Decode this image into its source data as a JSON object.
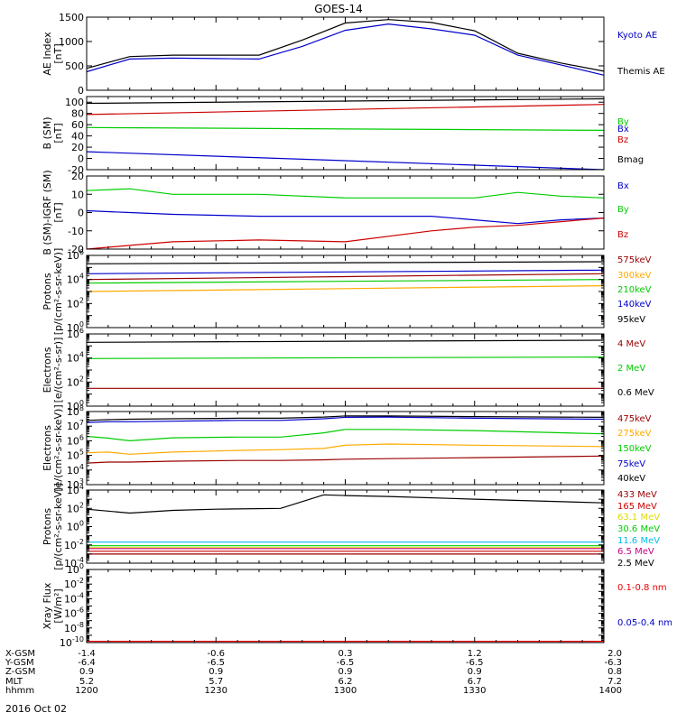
{
  "title": "GOES-14",
  "date_label": "2016 Oct 02",
  "orbit_table": {
    "rows": [
      {
        "label": "X-GSM",
        "values": [
          "-1.4",
          "-0.6",
          "0.3",
          "1.2",
          "2.0"
        ]
      },
      {
        "label": "Y-GSM",
        "values": [
          "-6.4",
          "-6.5",
          "-6.5",
          "-6.5",
          "-6.3"
        ]
      },
      {
        "label": "Z-GSM",
        "values": [
          "0.9",
          "0.9",
          "0.9",
          "0.9",
          "0.8"
        ]
      },
      {
        "label": "MLT",
        "values": [
          "5.2",
          "5.7",
          "6.2",
          "6.7",
          "7.2"
        ]
      },
      {
        "label": "hhmm",
        "values": [
          "1200",
          "1230",
          "1300",
          "1330",
          "1400"
        ]
      }
    ]
  },
  "colors": {
    "black": "#000000",
    "blue": "#0000cc",
    "red": "#cc0000",
    "green": "#00cc00",
    "orange": "#ffaa00",
    "darkred": "#990000",
    "cyan": "#00bbee",
    "yellow": "#dddd00",
    "purple": "#cc0088",
    "xred": "#ee0000"
  },
  "chart_data": [
    {
      "type": "line",
      "ylabel": [
        "AE Index",
        "[nT]"
      ],
      "ylim": [
        0,
        1500
      ],
      "log": false,
      "yticks": [
        0,
        500,
        1000,
        1500
      ],
      "x": [
        0,
        10,
        20,
        30,
        40,
        50,
        60,
        70,
        80,
        90,
        100,
        110,
        120
      ],
      "series": [
        {
          "name": "Kyoto AE",
          "color": "blue",
          "values": [
            380,
            640,
            660,
            650,
            640,
            900,
            1230,
            1360,
            1260,
            1130,
            720,
            520,
            310
          ]
        },
        {
          "name": "Themis AE",
          "color": "black",
          "values": [
            450,
            690,
            720,
            720,
            720,
            1030,
            1380,
            1450,
            1390,
            1220,
            760,
            560,
            390
          ]
        }
      ]
    },
    {
      "type": "line",
      "ylabel": [
        "B (SM)",
        "[nT]"
      ],
      "ylim": [
        -20,
        110
      ],
      "log": false,
      "yticks": [
        -20,
        0,
        20,
        40,
        60,
        80,
        100
      ],
      "x": [
        0,
        120
      ],
      "series": [
        {
          "name": "Bx",
          "color": "blue",
          "values": [
            12,
            -20
          ]
        },
        {
          "name": "By",
          "color": "green",
          "values": [
            55,
            50
          ]
        },
        {
          "name": "Bz",
          "color": "red",
          "values": [
            78,
            96
          ]
        },
        {
          "name": "Bmag",
          "color": "black",
          "values": [
            98,
            106
          ]
        }
      ]
    },
    {
      "type": "line",
      "ylabel": [
        "B (SM)-IGRF (SM)",
        "[nT]"
      ],
      "ylim": [
        -20,
        20
      ],
      "log": false,
      "yticks": [
        -20,
        -10,
        0,
        10,
        20
      ],
      "x": [
        0,
        10,
        20,
        40,
        60,
        80,
        90,
        100,
        110,
        120
      ],
      "series": [
        {
          "name": "Bx",
          "color": "blue",
          "values": [
            1,
            0,
            -1,
            -2,
            -2,
            -2,
            -4,
            -6,
            -4,
            -3
          ]
        },
        {
          "name": "By",
          "color": "green",
          "values": [
            12,
            13,
            10,
            10,
            8,
            8,
            8,
            11,
            9,
            8
          ]
        },
        {
          "name": "Bz",
          "color": "red",
          "values": [
            -20,
            -18,
            -16,
            -15,
            -16,
            -10,
            -8,
            -7,
            -5,
            -3
          ]
        }
      ]
    },
    {
      "type": "line",
      "ylabel": [
        "Protons",
        "[p/(cm²-s-sr-keV)]"
      ],
      "ylim": [
        1,
        1000000
      ],
      "log": true,
      "ytickexp": [
        0,
        2,
        4,
        6
      ],
      "x": [
        0,
        120
      ],
      "series": [
        {
          "name": "575keV",
          "color": "darkred",
          "values": [
            10000,
            30000
          ]
        },
        {
          "name": "300keV",
          "color": "orange",
          "values": [
            1000,
            3000
          ]
        },
        {
          "name": "210keV",
          "color": "green",
          "values": [
            5000,
            10000
          ]
        },
        {
          "name": "140keV",
          "color": "blue",
          "values": [
            30000,
            60000
          ]
        },
        {
          "name": "95keV",
          "color": "black",
          "values": [
            200000,
            300000
          ]
        }
      ]
    },
    {
      "type": "line",
      "ylabel": [
        "Electrons",
        "[e/(cm²-s-sr)]"
      ],
      "ylim": [
        1,
        1000000
      ],
      "log": true,
      "ytickexp": [
        0,
        2,
        4,
        6
      ],
      "x": [
        0,
        120
      ],
      "series": [
        {
          "name": "4 MeV",
          "color": "darkred",
          "values": [
            30,
            30
          ]
        },
        {
          "name": "2 MeV",
          "color": "green",
          "values": [
            9000,
            12000
          ]
        },
        {
          "name": "0.6 MeV",
          "color": "black",
          "values": [
            200000,
            300000
          ]
        }
      ]
    },
    {
      "type": "line",
      "ylabel": [
        "Electrons",
        "[e/(cm²-s-sr-keV)]"
      ],
      "ylim": [
        1000,
        100000000
      ],
      "log": true,
      "ytickexp": [
        3,
        4,
        5,
        6,
        7,
        8
      ],
      "x": [
        0,
        5,
        10,
        20,
        35,
        45,
        55,
        60,
        70,
        90,
        120
      ],
      "series": [
        {
          "name": "475keV",
          "color": "darkred",
          "values": [
            30000,
            35000,
            35000,
            40000,
            45000,
            45000,
            50000,
            55000,
            60000,
            70000,
            90000
          ]
        },
        {
          "name": "275keV",
          "color": "orange",
          "values": [
            150000,
            170000,
            120000,
            170000,
            220000,
            250000,
            300000,
            500000,
            600000,
            500000,
            400000
          ]
        },
        {
          "name": "150keV",
          "color": "green",
          "values": [
            2000000,
            1500000,
            1000000,
            1600000,
            1800000,
            1800000,
            3500000,
            6000000,
            6000000,
            5000000,
            3000000
          ]
        },
        {
          "name": "75keV",
          "color": "blue",
          "values": [
            18000000,
            20000000,
            20000000,
            22000000,
            25000000,
            25000000,
            32000000,
            40000000,
            42000000,
            35000000,
            30000000
          ]
        },
        {
          "name": "40keV",
          "color": "black",
          "values": [
            25000000,
            28000000,
            30000000,
            32000000,
            35000000,
            35000000,
            42000000,
            50000000,
            50000000,
            45000000,
            40000000
          ]
        }
      ]
    },
    {
      "type": "line",
      "ylabel": [
        "Protons",
        "[p/(cm²-s-sr-keV)]"
      ],
      "ylim": [
        0.0001,
        10000
      ],
      "log": true,
      "ytickexp": [
        -4,
        -2,
        0,
        2,
        4
      ],
      "x": [
        0,
        10,
        20,
        30,
        45,
        55,
        60,
        70,
        90,
        120
      ],
      "series": [
        {
          "name": "433 MeV",
          "color": "darkred",
          "values": [
            0.001,
            0.001,
            0.001,
            0.001,
            0.001,
            0.001,
            0.001,
            0.001,
            0.001,
            0.001
          ]
        },
        {
          "name": "165 MeV",
          "color": "red",
          "values": [
            0.002,
            0.002,
            0.002,
            0.002,
            0.002,
            0.002,
            0.002,
            0.002,
            0.002,
            0.002
          ]
        },
        {
          "name": "63.1 MeV",
          "color": "yellow",
          "values": [
            0.005,
            0.005,
            0.005,
            0.005,
            0.005,
            0.005,
            0.005,
            0.005,
            0.005,
            0.005
          ]
        },
        {
          "name": "30.6 MeV",
          "color": "green",
          "values": [
            0.008,
            0.008,
            0.008,
            0.008,
            0.008,
            0.008,
            0.008,
            0.008,
            0.008,
            0.008
          ]
        },
        {
          "name": "11.6 MeV",
          "color": "cyan",
          "values": [
            0.02,
            0.02,
            0.02,
            0.02,
            0.02,
            0.02,
            0.02,
            0.02,
            0.02,
            0.02
          ]
        },
        {
          "name": "6.5 MeV",
          "color": "purple",
          "values": [
            0.004,
            0.004,
            0.004,
            0.004,
            0.004,
            0.004,
            0.004,
            0.004,
            0.004,
            0.004
          ]
        },
        {
          "name": "2.5 MeV",
          "color": "black",
          "values": [
            80,
            30,
            60,
            80,
            100,
            3000,
            2500,
            2000,
            1000,
            400
          ]
        }
      ]
    },
    {
      "type": "line",
      "ylabel": [
        "Xray Flux",
        "[W/m²]"
      ],
      "ylim": [
        1e-10,
        1
      ],
      "log": true,
      "ytickexp": [
        -10,
        -8,
        -6,
        -4,
        -2,
        0
      ],
      "x": [
        0,
        120
      ],
      "series": [
        {
          "name": "0.1-0.8 nm",
          "color": "xred",
          "values": [
            1.5e-10,
            1.5e-10
          ]
        },
        {
          "name": "0.05-0.4 nm",
          "color": "blue",
          "values": [
            null,
            null
          ]
        }
      ]
    }
  ]
}
